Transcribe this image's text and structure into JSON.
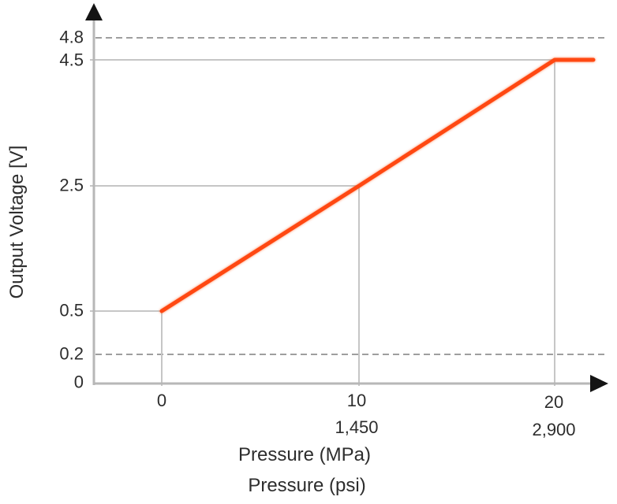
{
  "chart_data": {
    "type": "line",
    "title": "",
    "ylabel": "Output Voltage [V]",
    "xlabels": {
      "primary": "Pressure (MPa)",
      "secondary": "Pressure (psi)"
    },
    "y_tick_labels": [
      "4.8",
      "4.5",
      "2.5",
      "0.5",
      "0.2",
      "0"
    ],
    "x_tick_labels_mpa": [
      "0",
      "10",
      "20"
    ],
    "x_tick_labels_psi": [
      "1,450",
      "2,900"
    ],
    "ylim": [
      0,
      5
    ],
    "xlim_mpa": [
      0,
      22
    ],
    "series": [
      {
        "name": "transducer-output-voltage",
        "color": "#ff4812",
        "points": [
          [
            0,
            0.5
          ],
          [
            10,
            2.5
          ],
          [
            20,
            4.5
          ]
        ],
        "saturates_flat_beyond_last_point": true
      }
    ],
    "reference_lines": {
      "dashed_y": [
        4.8,
        0.2
      ],
      "solid_guides_through_points": true
    },
    "axis_arrows": [
      "y-top",
      "x-right"
    ],
    "grid": false,
    "legend": null,
    "colors": {
      "series": "#ff4812",
      "guide": "#c6c6c6",
      "dashed": "#9e9e9e",
      "axis": "#b7b7b7",
      "arrow": "#141414",
      "text": "#2d2d2d",
      "background": "#ffffff"
    }
  }
}
